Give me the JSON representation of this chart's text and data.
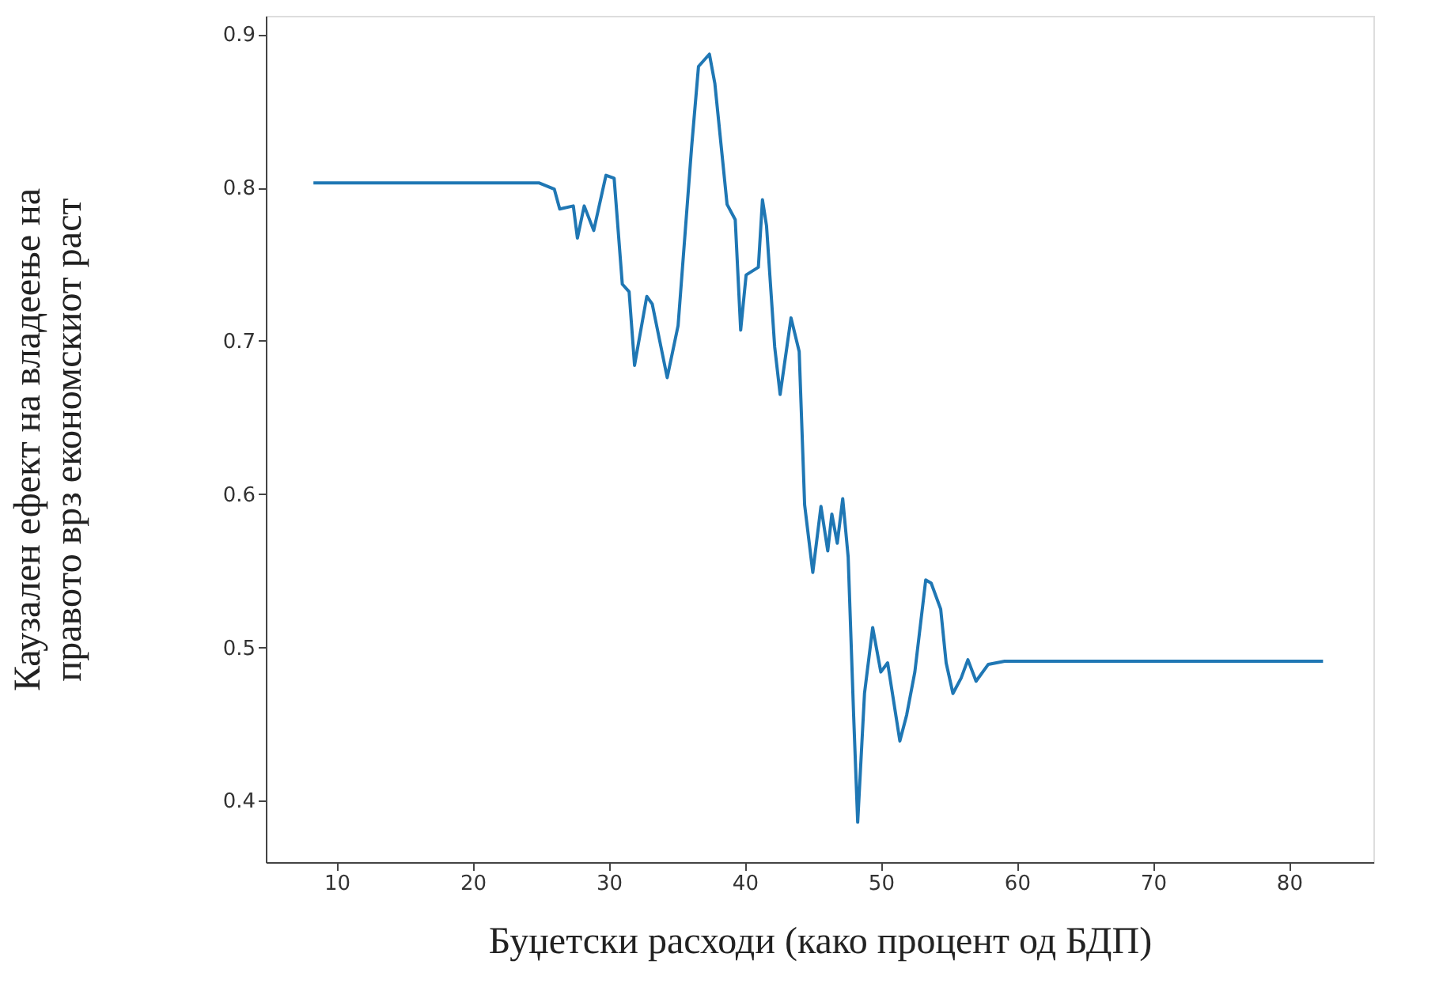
{
  "chart_data": {
    "type": "line",
    "xlabel": "Буџетски расходи (како процент од БДП)",
    "ylabel": "Каузален ефект на владеење на\nправото врз економскиот раст",
    "xlim": [
      4.8,
      86.2
    ],
    "ylim": [
      0.36,
      0.912
    ],
    "xticks": [
      10,
      20,
      30,
      40,
      50,
      60,
      70,
      80
    ],
    "yticks": [
      0.4,
      0.5,
      0.6,
      0.7,
      0.8,
      0.9
    ],
    "grid": false,
    "marker": "none",
    "line_style": "solid",
    "series": [
      {
        "color": "#1f77b4",
        "x": [
          8.3,
          24.9,
          26.0,
          26.4,
          27.4,
          27.7,
          28.2,
          28.9,
          29.8,
          30.4,
          31.0,
          31.5,
          31.9,
          32.8,
          33.2,
          34.3,
          35.1,
          36.1,
          36.6,
          37.4,
          37.8,
          38.7,
          39.3,
          39.7,
          40.1,
          41.0,
          41.3,
          41.6,
          42.2,
          42.6,
          43.4,
          44.0,
          44.4,
          45.0,
          45.6,
          46.1,
          46.4,
          46.8,
          47.2,
          47.6,
          48.0,
          48.3,
          48.8,
          49.4,
          50.0,
          50.5,
          51.4,
          51.9,
          52.5,
          53.3,
          53.7,
          54.4,
          54.8,
          55.3,
          55.9,
          56.4,
          57.0,
          57.9,
          59.1,
          82.5
        ],
        "values": [
          0.803,
          0.803,
          0.799,
          0.786,
          0.788,
          0.767,
          0.788,
          0.772,
          0.808,
          0.806,
          0.737,
          0.732,
          0.684,
          0.729,
          0.724,
          0.676,
          0.71,
          0.827,
          0.879,
          0.887,
          0.868,
          0.789,
          0.779,
          0.707,
          0.743,
          0.748,
          0.792,
          0.775,
          0.696,
          0.665,
          0.715,
          0.693,
          0.593,
          0.549,
          0.592,
          0.563,
          0.587,
          0.568,
          0.597,
          0.559,
          0.456,
          0.386,
          0.47,
          0.513,
          0.484,
          0.49,
          0.439,
          0.456,
          0.484,
          0.544,
          0.542,
          0.525,
          0.49,
          0.47,
          0.48,
          0.492,
          0.478,
          0.489,
          0.491,
          0.491
        ]
      }
    ]
  }
}
